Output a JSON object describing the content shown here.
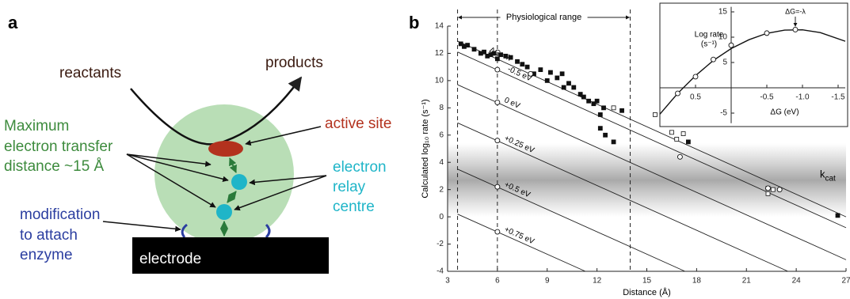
{
  "diagram": {
    "panel_label": "a",
    "reactants": "reactants",
    "products": "products",
    "transfer_label": [
      "Maximum",
      "electron transfer",
      "distance ~15 Å"
    ],
    "active_site": "active site",
    "relay_label": [
      "electron",
      "relay",
      "centre"
    ],
    "modification_label": [
      "modification",
      "to attach",
      "enzyme"
    ],
    "electrode": "electrode"
  },
  "panel_b_label": "b",
  "chart_data": [
    {
      "type": "line",
      "x_label": "Distance (Å)",
      "y_label": "Calculated log₁₀ rate (s⁻¹)",
      "xlim": [
        3,
        27
      ],
      "ylim": [
        -4,
        14
      ],
      "xticks": [
        3,
        6,
        9,
        12,
        15,
        18,
        21,
        24,
        27
      ],
      "yticks": [
        -4,
        -2,
        0,
        2,
        4,
        6,
        8,
        10,
        12,
        14
      ],
      "range_annotation": {
        "text": "Physiological range",
        "x": [
          3.6,
          14
        ]
      },
      "vlines": [
        3.6,
        6,
        14
      ],
      "band": {
        "label": "k",
        "label_subscript": "cat",
        "range": [
          0,
          5.4
        ]
      },
      "series": [
        {
          "name": "ΔG=-λ",
          "color": "#222222",
          "x": [
            3.6,
            27
          ],
          "values": [
            12.9,
            0
          ]
        },
        {
          "name": "-0.5 eV",
          "color": "#222222",
          "x": [
            3.6,
            27
          ],
          "values": [
            12.1,
            -0.8
          ]
        },
        {
          "name": "0 eV",
          "color": "#222222",
          "x": [
            3.6,
            27
          ],
          "values": [
            9.7,
            -3.15
          ]
        },
        {
          "name": "+0.25 eV",
          "color": "#222222",
          "x": [
            3.6,
            23.5
          ],
          "values": [
            6.9,
            -4
          ]
        },
        {
          "name": "+0.5 eV",
          "color": "#222222",
          "x": [
            3.6,
            17.3
          ],
          "values": [
            3.5,
            -4
          ]
        },
        {
          "name": "+0.75 eV",
          "color": "#222222",
          "x": [
            3.6,
            11.3
          ],
          "values": [
            0.2,
            -4
          ]
        },
        {
          "marker": "square-filled",
          "color": "#111111",
          "x": [
            3.8,
            4.0,
            4.2,
            4.6,
            5.0,
            5.2,
            5.4,
            5.6,
            5.8,
            6.0,
            6.2,
            6.5,
            6.8,
            7.2,
            7.5,
            7.8,
            8.2,
            8.6,
            9.0,
            9.2,
            9.6,
            9.9,
            10.0,
            10.3,
            10.6,
            11.0,
            11.2,
            11.5,
            11.8,
            12.0,
            12.2,
            12.4,
            12.2,
            12.5,
            13.0,
            13.5,
            17.5,
            26.5
          ],
          "values": [
            12.7,
            12.5,
            12.6,
            12.3,
            12.0,
            12.1,
            11.8,
            11.9,
            12.0,
            11.6,
            11.9,
            11.8,
            11.7,
            11.4,
            11.2,
            11.0,
            10.5,
            10.8,
            10.0,
            10.6,
            10.2,
            10.5,
            9.5,
            9.8,
            9.5,
            9.0,
            8.8,
            8.5,
            8.3,
            8.5,
            7.5,
            8.0,
            6.5,
            6.0,
            5.5,
            7.8,
            5.5,
            0.1
          ]
        },
        {
          "marker": "square-open",
          "color": "#111111",
          "x": [
            13.0,
            15.5,
            16.5,
            16.8,
            17.2,
            22.3,
            22.3,
            22.6
          ],
          "values": [
            8.0,
            7.5,
            6.2,
            5.7,
            6.1,
            2.1,
            1.7,
            2.0
          ]
        },
        {
          "marker": "circle-open",
          "color": "#111111",
          "x": [
            6,
            6,
            6,
            6,
            6,
            8.0,
            17,
            22.3,
            23
          ],
          "values": [
            10.8,
            8.4,
            5.6,
            2.2,
            -1.1,
            10.5,
            4.4,
            2.1,
            2.0
          ]
        }
      ]
    },
    {
      "type": "line",
      "x_label": "ΔG (eV)",
      "y_label": "Log rate",
      "y_label_unit": "(s⁻¹)",
      "peak_label": "ΔG=-λ",
      "xlim": [
        1,
        -1.6
      ],
      "ylim": [
        -7,
        16
      ],
      "xticks": [
        0.5,
        -0.5,
        {
          "value": -1,
          "label": "-1.0"
        },
        -1.5
      ],
      "yticks": [
        -5,
        5,
        10,
        15
      ],
      "series": [
        {
          "color": "#111111",
          "x": [
            1,
            0.75,
            0.5,
            0.25,
            0,
            -0.25,
            -0.5,
            -0.75,
            -1,
            -1.25,
            -1.6
          ],
          "values": [
            -5.2,
            -1.1,
            2.4,
            5.4,
            7.75,
            9.5,
            10.76,
            11.4,
            11.45,
            10.9,
            9.2
          ]
        },
        {
          "marker": "circle-open",
          "color": "#111111",
          "x": [
            0.75,
            0.5,
            0.25,
            0,
            -0.5,
            -0.9
          ],
          "values": [
            -1.1,
            2.2,
            5.6,
            8.4,
            10.8,
            11.5
          ]
        }
      ]
    }
  ]
}
